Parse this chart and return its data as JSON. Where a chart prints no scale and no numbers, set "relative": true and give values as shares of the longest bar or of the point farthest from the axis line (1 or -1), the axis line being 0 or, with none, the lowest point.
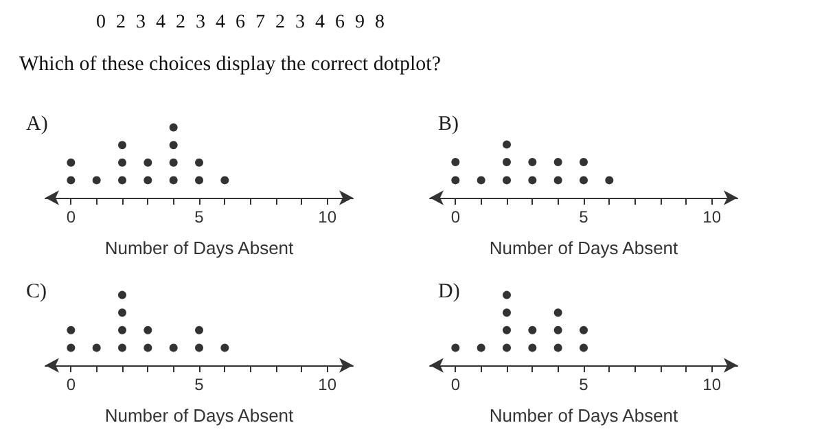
{
  "chart_data": [
    {
      "type": "other",
      "title": "0 2 3 4 2 3 4 6 7 2 3 4 6 9 8",
      "subtitle": "Which of these choices display the correct dotplot?"
    },
    {
      "type": "scatter",
      "title": "A)",
      "xlabel": "Number of Days Absent",
      "marker": "circle",
      "tick_labels": "x",
      "relative": true,
      "xlim": [
        -1,
        11
      ],
      "xticks": [
        0,
        {
          "value": 1,
          "label": null
        },
        {
          "value": 2,
          "label": null
        },
        {
          "value": 3,
          "label": null
        },
        {
          "value": 4,
          "label": null
        },
        5,
        {
          "value": 6,
          "label": null
        },
        {
          "value": 7,
          "label": null
        },
        {
          "value": 8,
          "label": null
        },
        {
          "value": 9,
          "label": null
        },
        10
      ],
      "series": [
        {
          "color": "#000000",
          "x": [
            0,
            0,
            1,
            2,
            2,
            2,
            3,
            3,
            4,
            4,
            4,
            4,
            5,
            5,
            6
          ],
          "values": [
            0.25,
            0.5,
            0.25,
            0.25,
            0.5,
            0.75,
            0.25,
            0.5,
            0.25,
            0.5,
            0.75,
            1,
            0.25,
            0.5,
            0.25
          ]
        }
      ]
    },
    {
      "type": "scatter",
      "title": "B)",
      "xlabel": "Number of Days Absent",
      "marker": "circle",
      "tick_labels": "x",
      "relative": true,
      "xlim": [
        -1,
        11
      ],
      "xticks": [
        0,
        {
          "value": 1,
          "label": null
        },
        {
          "value": 2,
          "label": null
        },
        {
          "value": 3,
          "label": null
        },
        {
          "value": 4,
          "label": null
        },
        5,
        {
          "value": 6,
          "label": null
        },
        {
          "value": 7,
          "label": null
        },
        {
          "value": 8,
          "label": null
        },
        {
          "value": 9,
          "label": null
        },
        10
      ],
      "series": [
        {
          "color": "#000000",
          "x": [
            0,
            0,
            1,
            2,
            2,
            2,
            3,
            3,
            4,
            4,
            5,
            5,
            6
          ],
          "values": [
            0.33,
            0.67,
            0.33,
            0.33,
            0.67,
            1,
            0.33,
            0.67,
            0.33,
            0.67,
            0.33,
            0.67,
            0.33
          ]
        }
      ]
    },
    {
      "type": "scatter",
      "title": "C)",
      "xlabel": "Number of Days Absent",
      "marker": "circle",
      "tick_labels": "x",
      "relative": true,
      "xlim": [
        -1,
        11
      ],
      "xticks": [
        0,
        {
          "value": 1,
          "label": null
        },
        {
          "value": 2,
          "label": null
        },
        {
          "value": 3,
          "label": null
        },
        {
          "value": 4,
          "label": null
        },
        5,
        {
          "value": 6,
          "label": null
        },
        {
          "value": 7,
          "label": null
        },
        {
          "value": 8,
          "label": null
        },
        {
          "value": 9,
          "label": null
        },
        10
      ],
      "series": [
        {
          "color": "#000000",
          "x": [
            0,
            0,
            1,
            2,
            2,
            2,
            2,
            3,
            3,
            4,
            5,
            5,
            6
          ],
          "values": [
            0.25,
            0.5,
            0.25,
            0.25,
            0.5,
            0.75,
            1,
            0.25,
            0.5,
            0.25,
            0.25,
            0.5,
            0.25
          ]
        }
      ]
    },
    {
      "type": "scatter",
      "title": "D)",
      "xlabel": "Number of Days Absent",
      "marker": "circle",
      "tick_labels": "x",
      "relative": true,
      "xlim": [
        -1,
        11
      ],
      "xticks": [
        0,
        {
          "value": 1,
          "label": null
        },
        {
          "value": 2,
          "label": null
        },
        {
          "value": 3,
          "label": null
        },
        {
          "value": 4,
          "label": null
        },
        5,
        {
          "value": 6,
          "label": null
        },
        {
          "value": 7,
          "label": null
        },
        {
          "value": 8,
          "label": null
        },
        {
          "value": 9,
          "label": null
        },
        10
      ],
      "series": [
        {
          "color": "#000000",
          "x": [
            0,
            1,
            2,
            2,
            2,
            2,
            3,
            3,
            4,
            4,
            4,
            5,
            5
          ],
          "values": [
            0.25,
            0.25,
            0.25,
            0.5,
            0.75,
            1,
            0.25,
            0.5,
            0.25,
            0.5,
            0.75,
            0.25,
            0.5
          ]
        }
      ]
    }
  ]
}
